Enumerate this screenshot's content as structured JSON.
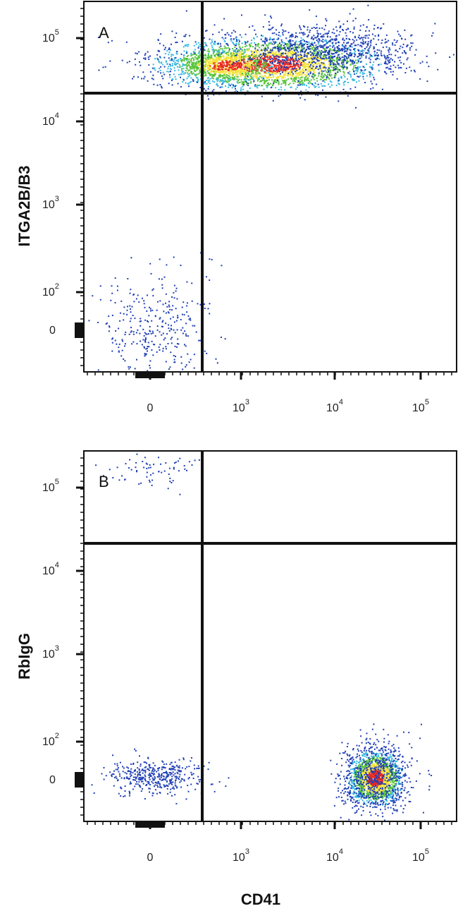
{
  "figure": {
    "x_axis_title": "CD41",
    "panels": [
      {
        "letter": "A",
        "y_axis_title": "ITGA2B/B3"
      },
      {
        "letter": "B",
        "y_axis_title": "RbIgG"
      }
    ]
  },
  "colors": {
    "density_low": "#1f3fb5",
    "density_mid_low": "#33b8e0",
    "density_mid": "#56c23a",
    "density_mid_high": "#f2e23a",
    "density_high": "#e8281e",
    "gate_line": "#111111",
    "frame": "#111111"
  },
  "chart_data": [
    {
      "type": "scatter",
      "subtype": "flow-cytometry-pseudocolor",
      "panel": "A",
      "xlabel": "CD41",
      "ylabel": "ITGA2B/B3",
      "x_scale": "biexponential",
      "y_scale": "biexponential",
      "x_ticks": [
        {
          "label": "0",
          "value": 0
        },
        {
          "label": "10",
          "exp": "3",
          "value": 1000
        },
        {
          "label": "10",
          "exp": "4",
          "value": 10000
        },
        {
          "label": "10",
          "exp": "5",
          "value": 100000
        }
      ],
      "y_ticks": [
        {
          "label": "0",
          "value": 0
        },
        {
          "label": "10",
          "exp": "2",
          "value": 100
        },
        {
          "label": "10",
          "exp": "3",
          "value": 1000
        },
        {
          "label": "10",
          "exp": "4",
          "value": 10000
        },
        {
          "label": "10",
          "exp": "5",
          "value": 100000
        }
      ],
      "quadrant_gate": {
        "x": 400,
        "y": 20000
      },
      "populations": [
        {
          "name_shown": false,
          "center_x": 3000,
          "center_y": 50000,
          "density": "high",
          "quadrant": "upper-right"
        },
        {
          "name_shown": false,
          "center_x": 0,
          "center_y": 0,
          "density": "low",
          "quadrant": "lower-left"
        }
      ]
    },
    {
      "type": "scatter",
      "subtype": "flow-cytometry-pseudocolor",
      "panel": "B",
      "xlabel": "CD41",
      "ylabel": "RbIgG",
      "x_scale": "biexponential",
      "y_scale": "biexponential",
      "x_ticks": [
        {
          "label": "0",
          "value": 0
        },
        {
          "label": "10",
          "exp": "3",
          "value": 1000
        },
        {
          "label": "10",
          "exp": "4",
          "value": 10000
        },
        {
          "label": "10",
          "exp": "5",
          "value": 100000
        }
      ],
      "y_ticks": [
        {
          "label": "0",
          "value": 0
        },
        {
          "label": "10",
          "exp": "2",
          "value": 100
        },
        {
          "label": "10",
          "exp": "3",
          "value": 1000
        },
        {
          "label": "10",
          "exp": "4",
          "value": 10000
        },
        {
          "label": "10",
          "exp": "5",
          "value": 100000
        }
      ],
      "quadrant_gate": {
        "x": 400,
        "y": 20000
      },
      "populations": [
        {
          "name_shown": false,
          "center_x": 30000,
          "center_y": 0,
          "density": "high",
          "quadrant": "lower-right"
        },
        {
          "name_shown": false,
          "center_x": 0,
          "center_y": 0,
          "density": "low",
          "quadrant": "lower-left"
        }
      ]
    }
  ]
}
